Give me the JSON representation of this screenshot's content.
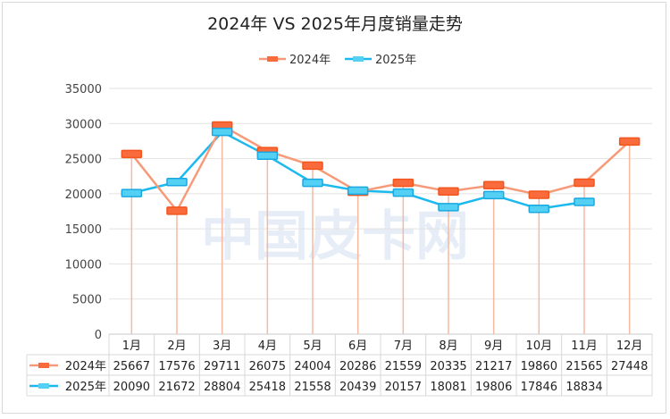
{
  "chart_data": {
    "type": "line",
    "title": "2024年 VS 2025年月度销量走势",
    "categories": [
      "1月",
      "2月",
      "3月",
      "4月",
      "5月",
      "6月",
      "7月",
      "8月",
      "9月",
      "10月",
      "11月",
      "12月"
    ],
    "series": [
      {
        "name": "2024年",
        "color": "#f79a7a",
        "marker_color": "#f96a3c",
        "values": [
          25667,
          17576,
          29711,
          26075,
          24004,
          20286,
          21559,
          20335,
          21217,
          19860,
          21565,
          27448
        ]
      },
      {
        "name": "2025年",
        "color": "#1cb9ef",
        "marker_color": "#54d0f5",
        "values": [
          20090,
          21672,
          28804,
          25418,
          21558,
          20439,
          20157,
          18081,
          19806,
          17846,
          18834,
          null
        ]
      }
    ],
    "ylim": [
      0,
      35000
    ],
    "yticks": [
      0,
      5000,
      10000,
      15000,
      20000,
      25000,
      30000,
      35000
    ],
    "xlabel": "",
    "ylabel": "",
    "grid": true,
    "legend": "top-center",
    "data_table": true
  },
  "watermark": "中国皮卡网"
}
